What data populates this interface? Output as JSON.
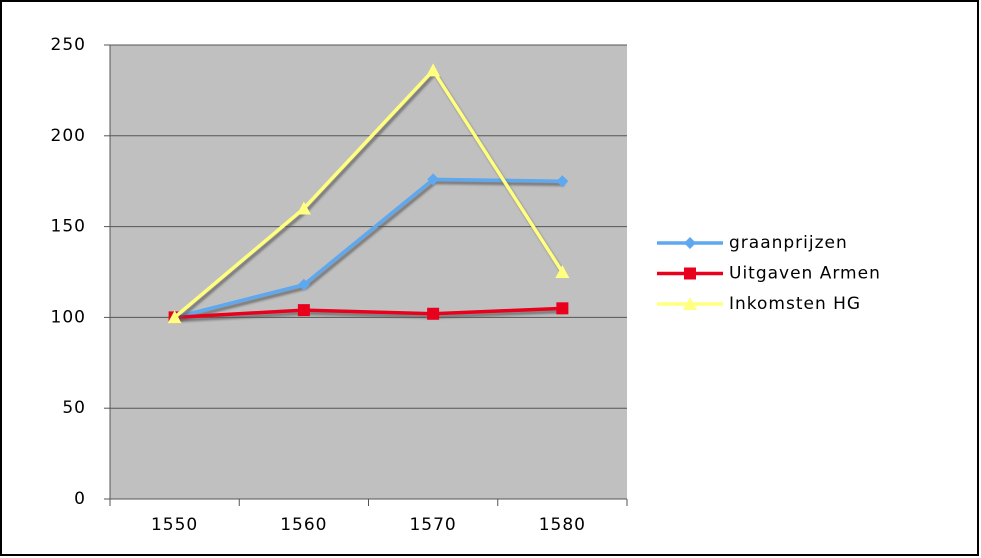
{
  "chart_data": {
    "type": "line",
    "categories": [
      "1550",
      "1560",
      "1570",
      "1580"
    ],
    "series": [
      {
        "name": "graanprijzen",
        "color": "#5ea8f0",
        "marker": "diamond",
        "values": [
          100,
          118,
          176,
          175
        ]
      },
      {
        "name": "Uitgaven Armen",
        "color": "#e8001c",
        "marker": "square",
        "values": [
          100,
          104,
          102,
          105
        ]
      },
      {
        "name": "Inkomsten HG",
        "color": "#ffff80",
        "marker": "triangle",
        "values": [
          100,
          160,
          236,
          125
        ]
      }
    ],
    "ylim": [
      0,
      250
    ],
    "yticks": [
      0,
      50,
      100,
      150,
      200,
      250
    ],
    "grid": true,
    "legend": "right"
  }
}
